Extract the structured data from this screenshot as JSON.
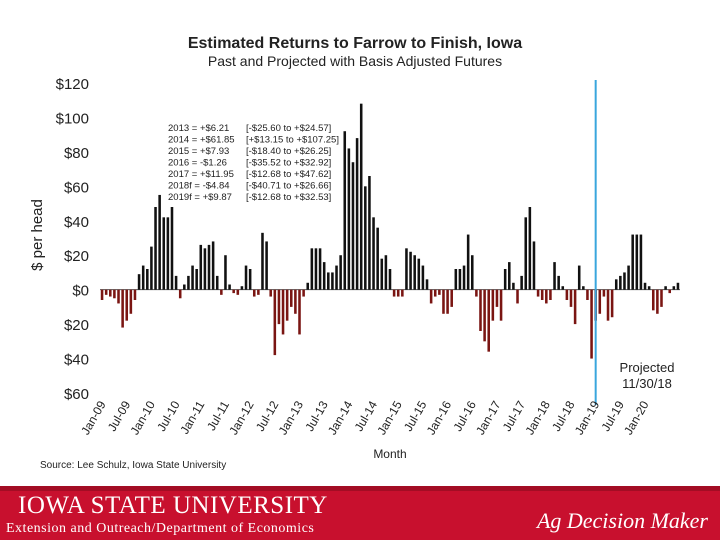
{
  "chart_data": {
    "type": "bar",
    "title": "Estimated Returns to Farrow to Finish, Iowa",
    "subtitle": "Past and Projected with Basis Adjusted Futures",
    "xlabel": "Month",
    "ylabel": "$ per head",
    "ylim": [
      -60,
      120
    ],
    "ytick_labels": [
      "$120",
      "$100",
      "$80",
      "$60",
      "$40",
      "$20",
      "$0",
      "$20",
      "$40",
      "$60"
    ],
    "ytick_values": [
      120,
      100,
      80,
      60,
      40,
      20,
      0,
      -20,
      -40,
      -60
    ],
    "xtick_labels": [
      "Jan-09",
      "Jul-09",
      "Jan-10",
      "Jul-10",
      "Jan-11",
      "Jul-11",
      "Jan-12",
      "Jul-12",
      "Jan-13",
      "Jul-13",
      "Jan-14",
      "Jul-14",
      "Jan-15",
      "Jul-15",
      "Jan-16",
      "Jul-16",
      "Jan-17",
      "Jul-17",
      "Jan-18",
      "Jul-18",
      "Jan-19",
      "Jul-19",
      "Jan-20"
    ],
    "start_month": "Jan-09",
    "values": [
      -6,
      -3,
      -4,
      -5,
      -8,
      -22,
      -18,
      -14,
      -6,
      9,
      14,
      12,
      25,
      48,
      55,
      42,
      42,
      48,
      8,
      -5,
      3,
      8,
      14,
      12,
      26,
      24,
      26,
      28,
      8,
      -3,
      20,
      3,
      -2,
      -3,
      2,
      14,
      12,
      -4,
      -3,
      33,
      28,
      -4,
      -38,
      -20,
      -26,
      -18,
      -10,
      -14,
      -26,
      -4,
      4,
      24,
      24,
      24,
      16,
      10,
      10,
      14,
      20,
      92,
      82,
      74,
      88,
      108,
      60,
      66,
      42,
      36,
      18,
      20,
      12,
      -4,
      -4,
      -4,
      24,
      22,
      20,
      18,
      14,
      6,
      -8,
      -4,
      -3,
      -14,
      -14,
      -10,
      12,
      12,
      14,
      32,
      20,
      -4,
      -24,
      -30,
      -36,
      -18,
      -10,
      -18,
      12,
      16,
      4,
      -8,
      8,
      42,
      48,
      28,
      -4,
      -6,
      -8,
      -6,
      16,
      8,
      2,
      -6,
      -10,
      -20,
      14,
      2,
      -6,
      -40,
      -18,
      -14,
      -4,
      -18,
      -16,
      6,
      8,
      10,
      14,
      32,
      32,
      32,
      4,
      2,
      -12,
      -14,
      -10,
      2,
      -2,
      2,
      4
    ],
    "bar_colors": {
      "positive": "#111111",
      "negative": "#7a1512"
    },
    "divider_color": "#3aa6dd",
    "divider_after_index": 119,
    "projection_label": [
      "Projected",
      "11/30/18"
    ],
    "annotations": [
      {
        "year": "2013 = +$6.21",
        "range": "[-$25.60 to +$24.57]"
      },
      {
        "year": "2014 = +$61.85",
        "range": "[+$13.15 to +$107.25]"
      },
      {
        "year": "2015 = +$7.93",
        "range": "[-$18.40 to +$26.25]"
      },
      {
        "year": "2016 = -$1.26",
        "range": "[-$35.52 to +$32.92]"
      },
      {
        "year": "2017 = +$11.95",
        "range": "[-$12.68 to +$47.62]"
      },
      {
        "year": "2018f = -$4.84",
        "range": "[-$40.71 to +$26.66]"
      },
      {
        "year": "2019f = +$9.87",
        "range": "[-$12.68 to +$32.53]"
      }
    ],
    "source": "Source: Lee Schulz, Iowa State University"
  },
  "footer": {
    "logo_text": "IOWA STATE UNIVERSITY",
    "subtitle": "Extension and Outreach/Department of Economics",
    "brand": "Ag Decision Maker"
  }
}
